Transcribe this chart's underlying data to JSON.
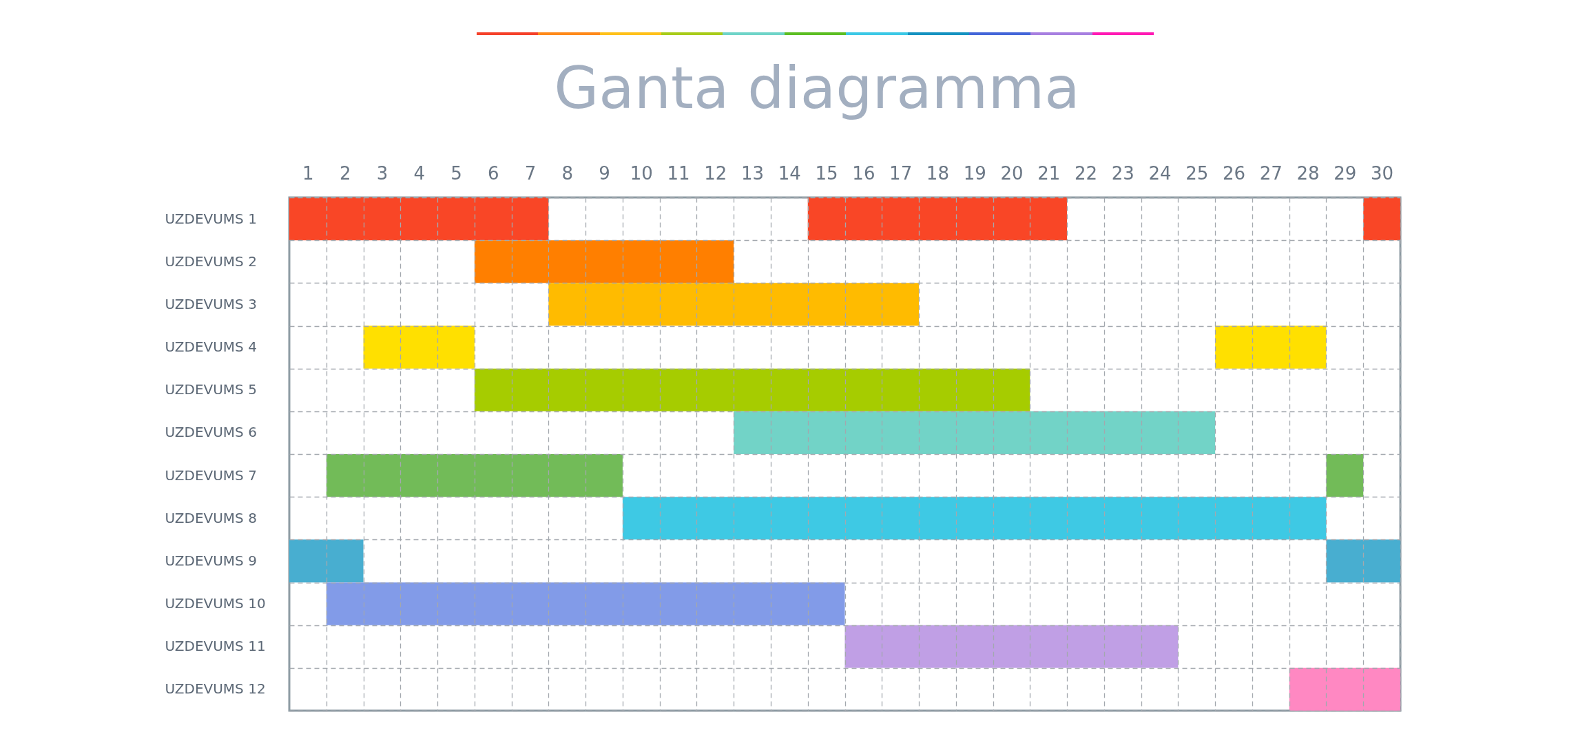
{
  "chart_data": {
    "type": "bar",
    "orientation": "horizontal",
    "title": "Ganta diagramma",
    "categories": [
      "UZDEVUMS 1",
      "UZDEVUMS 2",
      "UZDEVUMS 3",
      "UZDEVUMS 4",
      "UZDEVUMS 5",
      "UZDEVUMS 6",
      "UZDEVUMS 7",
      "UZDEVUMS 8",
      "UZDEVUMS 9",
      "UZDEVUMS 10",
      "UZDEVUMS 11",
      "UZDEVUMS 12"
    ],
    "series": [
      {
        "base": [
          0.5,
          5.5,
          7.5,
          2.5,
          5.5,
          12.5,
          1.5,
          9.5,
          0.5,
          1.5,
          15.5,
          27.5
        ],
        "values": [
          7,
          7,
          10,
          3,
          15,
          13,
          8,
          19,
          2,
          14,
          9,
          3
        ],
        "colors": [
          "#f94626",
          "#ff7f00",
          "#ffbb00",
          "#ffe000",
          "#a6cc00",
          "#72d3c7",
          "#72bb58",
          "#3ec9e4",
          "#48aed0",
          "#829be8",
          "#c09fe5",
          "#ff88c2"
        ]
      },
      {
        "base": [
          14.5,
          null,
          null,
          25.5,
          null,
          null,
          28.5,
          null,
          28.5,
          null,
          null,
          null
        ],
        "values": [
          7,
          null,
          null,
          3,
          null,
          null,
          1,
          null,
          2,
          null,
          null,
          null
        ],
        "colors": [
          "#f94626",
          null,
          null,
          "#ffe000",
          null,
          null,
          "#72bb58",
          null,
          "#48aed0",
          null,
          null,
          null
        ]
      },
      {
        "base": [
          29.5,
          null,
          null,
          null,
          null,
          null,
          null,
          null,
          null,
          null,
          null,
          null
        ],
        "values": [
          1,
          null,
          null,
          null,
          null,
          null,
          null,
          null,
          null,
          null,
          null,
          null
        ],
        "colors": [
          "#f94626",
          null,
          null,
          null,
          null,
          null,
          null,
          null,
          null,
          null,
          null,
          null
        ]
      }
    ],
    "xlim": [
      0.5,
      30.5
    ],
    "xticks": [
      1,
      2,
      3,
      4,
      5,
      6,
      7,
      8,
      9,
      10,
      11,
      12,
      13,
      14,
      15,
      16,
      17,
      18,
      19,
      20,
      21,
      22,
      23,
      24,
      25,
      26,
      27,
      28,
      29,
      30
    ],
    "grid": true
  }
}
